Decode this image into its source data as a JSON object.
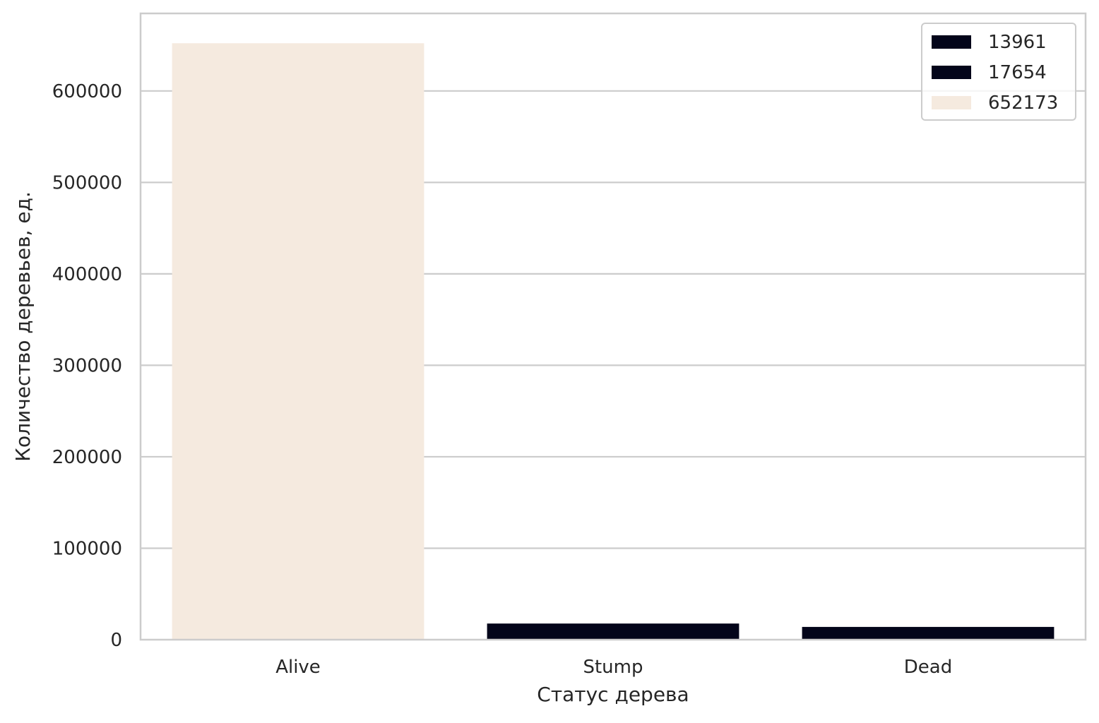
{
  "chart_data": {
    "type": "bar",
    "categories": [
      "Alive",
      "Stump",
      "Dead"
    ],
    "values": [
      652173,
      17654,
      13961
    ],
    "bar_colors": [
      "#f5eadf",
      "#03051a",
      "#03051a"
    ],
    "title": "",
    "xlabel": "Статус дерева",
    "ylabel": "Количество деревьев, ед.",
    "ylim": [
      0,
      684782
    ],
    "yticks": [
      0,
      100000,
      200000,
      300000,
      400000,
      500000,
      600000
    ],
    "ytick_labels": [
      "0",
      "100000",
      "200000",
      "300000",
      "400000",
      "500000",
      "600000"
    ],
    "grid": true,
    "grid_axis": "y",
    "legend": {
      "placement": "top-right",
      "entries": [
        {
          "label": "13961",
          "color": "#03051a"
        },
        {
          "label": "17654",
          "color": "#03051a"
        },
        {
          "label": "652173",
          "color": "#f5eadf"
        }
      ]
    },
    "colors": {
      "grid": "#cccccc",
      "spine": "#cccccc",
      "text": "#262626"
    }
  }
}
